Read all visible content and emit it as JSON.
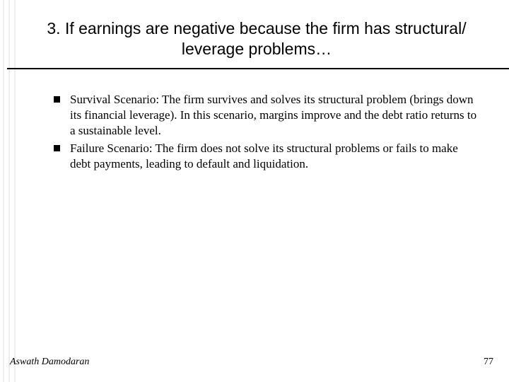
{
  "title": "3. If earnings are negative because the firm has structural/ leverage problems…",
  "bullets": [
    "Survival Scenario: The firm survives and solves its structural problem (brings down its financial leverage). In this scenario, margins improve and the debt ratio returns to a sustainable level.",
    "Failure Scenario: The firm does not solve its structural problems or fails to make debt payments, leading to default and liquidation."
  ],
  "footer": {
    "author": "Aswath Damodaran",
    "page": "77"
  },
  "style": {
    "background_color": "#ffffff",
    "title_font": "Arial",
    "title_fontsize_pt": 23,
    "body_font": "Times New Roman",
    "body_fontsize_pt": 17,
    "bullet_marker": "filled-square",
    "bullet_color": "#000000",
    "rule_color": "#000000",
    "left_accent_color": "#eeeeee"
  }
}
